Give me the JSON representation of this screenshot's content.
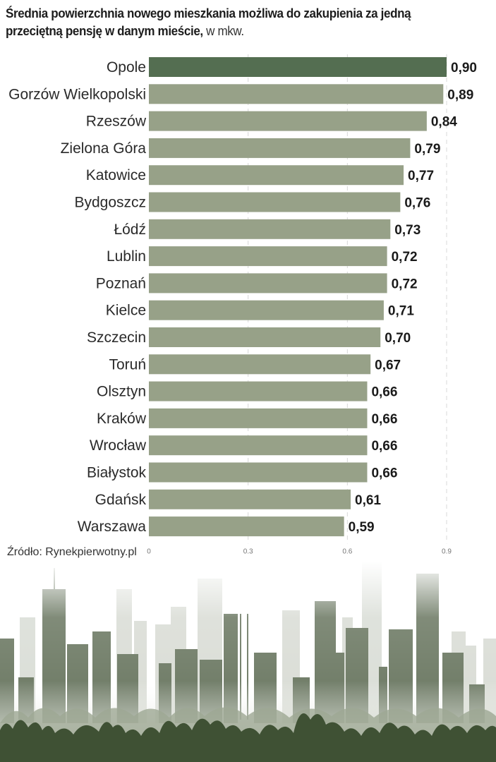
{
  "header": {
    "title_bold": "Średnia powierzchnia nowego mieszkania możliwa do zakupienia za jedną przeciętną pensję w danym mieście,",
    "title_unit": " w mkw."
  },
  "footer": {
    "source": "Źródło: Rynekpierwotny.pl"
  },
  "colors": {
    "highlight_bar": "#546e51",
    "bar": "#97a188",
    "gridline": "#d8d8d8",
    "skyline_dark": "#3f5134",
    "skyline_mid": "#6f7b67"
  },
  "chart_data": {
    "type": "bar",
    "orientation": "horizontal",
    "title": "Średnia powierzchnia nowego mieszkania możliwa do zakupienia za jedną przeciętną pensję w danym mieście, w mkw.",
    "xlabel": "",
    "ylabel": "",
    "categories": [
      "Opole",
      "Gorzów Wielkopolski",
      "Rzeszów",
      "Zielona Góra",
      "Katowice",
      "Bydgoszcz",
      "Łódź",
      "Lublin",
      "Poznań",
      "Kielce",
      "Szczecin",
      "Toruń",
      "Olsztyn",
      "Kraków",
      "Wrocław",
      "Białystok",
      "Gdańsk",
      "Warszawa"
    ],
    "values": [
      0.9,
      0.89,
      0.84,
      0.79,
      0.77,
      0.76,
      0.73,
      0.72,
      0.72,
      0.71,
      0.7,
      0.67,
      0.66,
      0.66,
      0.66,
      0.66,
      0.61,
      0.59
    ],
    "value_labels": [
      "0,90",
      "0,89",
      "0,84",
      "0,79",
      "0,77",
      "0,76",
      "0,73",
      "0,72",
      "0,72",
      "0,71",
      "0,70",
      "0,67",
      "0,66",
      "0,66",
      "0,66",
      "0,66",
      "0,61",
      "0,59"
    ],
    "highlighted_category": "Opole",
    "xlim": [
      0,
      0.9
    ],
    "xticks": [
      0,
      0.3,
      0.6,
      0.9
    ],
    "xtick_labels": [
      "0",
      "0.3",
      "0.6",
      "0.9"
    ],
    "grid": "vertical dashed",
    "legend": "none"
  }
}
